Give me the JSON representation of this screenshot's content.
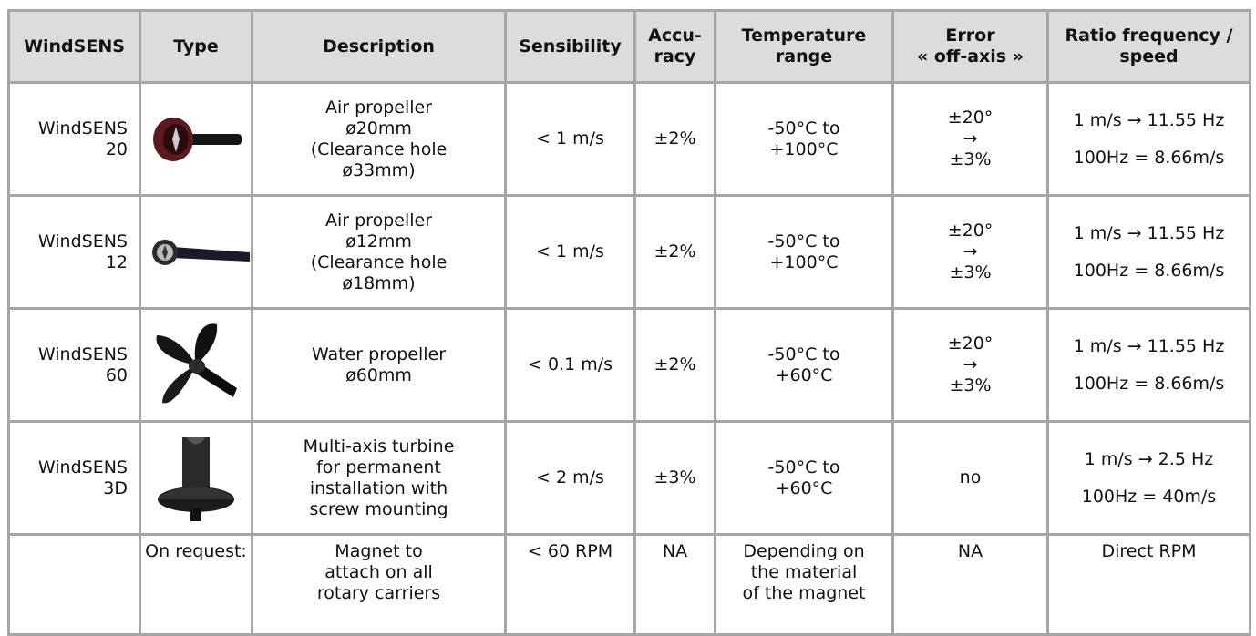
{
  "table": {
    "header": [
      [
        "WindSENS"
      ],
      [
        "Type"
      ],
      [
        "Description"
      ],
      [
        "Sensibility"
      ],
      [
        "Accu-",
        "racy"
      ],
      [
        "Temperature",
        "range"
      ],
      [
        "Error",
        "« off-axis »"
      ],
      [
        "Ratio frequency /",
        "speed"
      ]
    ],
    "rows": [
      [
        [
          "WindSENS",
          "20"
        ],
        null,
        [
          "Air propeller",
          "ø20mm",
          "(Clearance hole",
          "ø33mm)"
        ],
        [
          "< 1 m/s"
        ],
        [
          "±2%"
        ],
        [
          "-50°C to",
          "+100°C"
        ],
        [
          "±20°",
          "→",
          "±3%"
        ],
        [
          "1 m/s → 11.55 Hz",
          "100Hz = 8.66m/s"
        ]
      ],
      [
        [
          "WindSENS",
          "12"
        ],
        null,
        [
          "Air propeller",
          "ø12mm",
          "(Clearance hole",
          "ø18mm)"
        ],
        [
          "< 1 m/s"
        ],
        [
          "±2%"
        ],
        [
          "-50°C to",
          "+100°C"
        ],
        [
          "±20°",
          "→",
          "±3%"
        ],
        [
          "1 m/s → 11.55 Hz",
          "100Hz = 8.66m/s"
        ]
      ],
      [
        [
          "WindSENS",
          "60"
        ],
        null,
        [
          "Water  propeller",
          "ø60mm"
        ],
        [
          "< 0.1 m/s"
        ],
        [
          "±2%"
        ],
        [
          "-50°C to",
          "+60°C"
        ],
        [
          "±20°",
          "→",
          "±3%"
        ],
        [
          "1 m/s → 11.55 Hz",
          "100Hz = 8.66m/s"
        ]
      ],
      [
        [
          "WindSENS",
          "3D"
        ],
        null,
        [
          "Multi-axis turbine",
          "for permanent",
          "installation with",
          "screw mounting"
        ],
        [
          "< 2 m/s"
        ],
        [
          "±3%"
        ],
        [
          "-50°C to",
          "+60°C"
        ],
        [
          "no"
        ],
        [
          "1 m/s → 2.5 Hz",
          "100Hz = 40m/s"
        ]
      ],
      [
        null,
        [
          "On request:"
        ],
        [
          "Magnet to",
          "attach on all",
          "rotary carriers"
        ],
        [
          "< 60 RPM"
        ],
        [
          "NA"
        ],
        [
          "Depending on",
          "the material",
          "of the magnet"
        ],
        [
          "NA"
        ],
        [
          "Direct RPM"
        ]
      ]
    ]
  }
}
